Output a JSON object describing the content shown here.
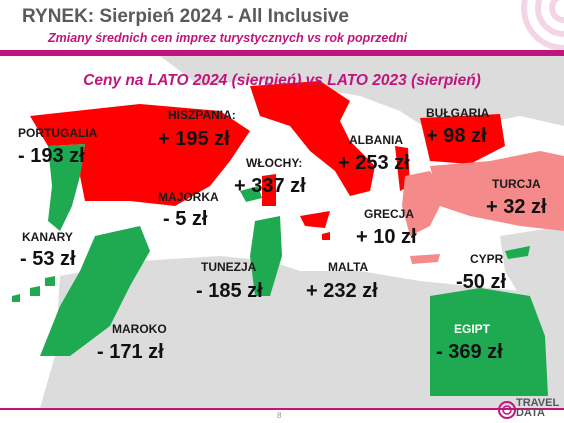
{
  "header": {
    "title": "RYNEK: Sierpień 2024 - All Inclusive",
    "subtitle": "Zmiany średnich cen imprez turystycznych vs rok poprzedni"
  },
  "map_title": "Ceny na LATO 2024 (sierpień) vs  LATO 2023 (sierpień)",
  "colors": {
    "accent": "#c0157c",
    "increase": "#ff0000",
    "increase_light": "#f58a8a",
    "decrease": "#1faa52",
    "land": "#dcdcdc"
  },
  "countries": [
    {
      "id": "portugalia",
      "name": "PORTUGALIA",
      "change": "- 193 zł",
      "trend": "decrease"
    },
    {
      "id": "hiszpania",
      "name": "HISZPANIA:",
      "change": "+ 195 zł",
      "trend": "increase"
    },
    {
      "id": "majorka",
      "name": "MAJORKA",
      "change": "- 5 zł",
      "trend": "decrease"
    },
    {
      "id": "wlochy",
      "name": "WŁOCHY:",
      "change": "+ 337 zł",
      "trend": "increase"
    },
    {
      "id": "albania",
      "name": "ALBANIA",
      "change": "+ 253 zł",
      "trend": "increase"
    },
    {
      "id": "bulgaria",
      "name": "BUŁGARIA",
      "change": "+ 98 zł",
      "trend": "increase"
    },
    {
      "id": "turcja",
      "name": "TURCJA",
      "change": "+ 32 zł",
      "trend": "increase"
    },
    {
      "id": "grecja",
      "name": "GRECJA",
      "change": "+ 10 zł",
      "trend": "increase"
    },
    {
      "id": "kanary",
      "name": "KANARY",
      "change": "- 53 zł",
      "trend": "decrease"
    },
    {
      "id": "tunezja",
      "name": "TUNEZJA",
      "change": "- 185 zł",
      "trend": "decrease"
    },
    {
      "id": "malta",
      "name": "MALTA",
      "change": "+ 232 zł",
      "trend": "increase"
    },
    {
      "id": "cypr",
      "name": "CYPR",
      "change": "-50 zł",
      "trend": "decrease"
    },
    {
      "id": "maroko",
      "name": "MAROKO",
      "change": "- 171 zł",
      "trend": "decrease"
    },
    {
      "id": "egipt",
      "name": "EGIPT",
      "change": "- 369 zł",
      "trend": "decrease"
    }
  ],
  "footer": {
    "page_number": "8",
    "logo_line1": "TRAVEL",
    "logo_line2": "DATA"
  }
}
